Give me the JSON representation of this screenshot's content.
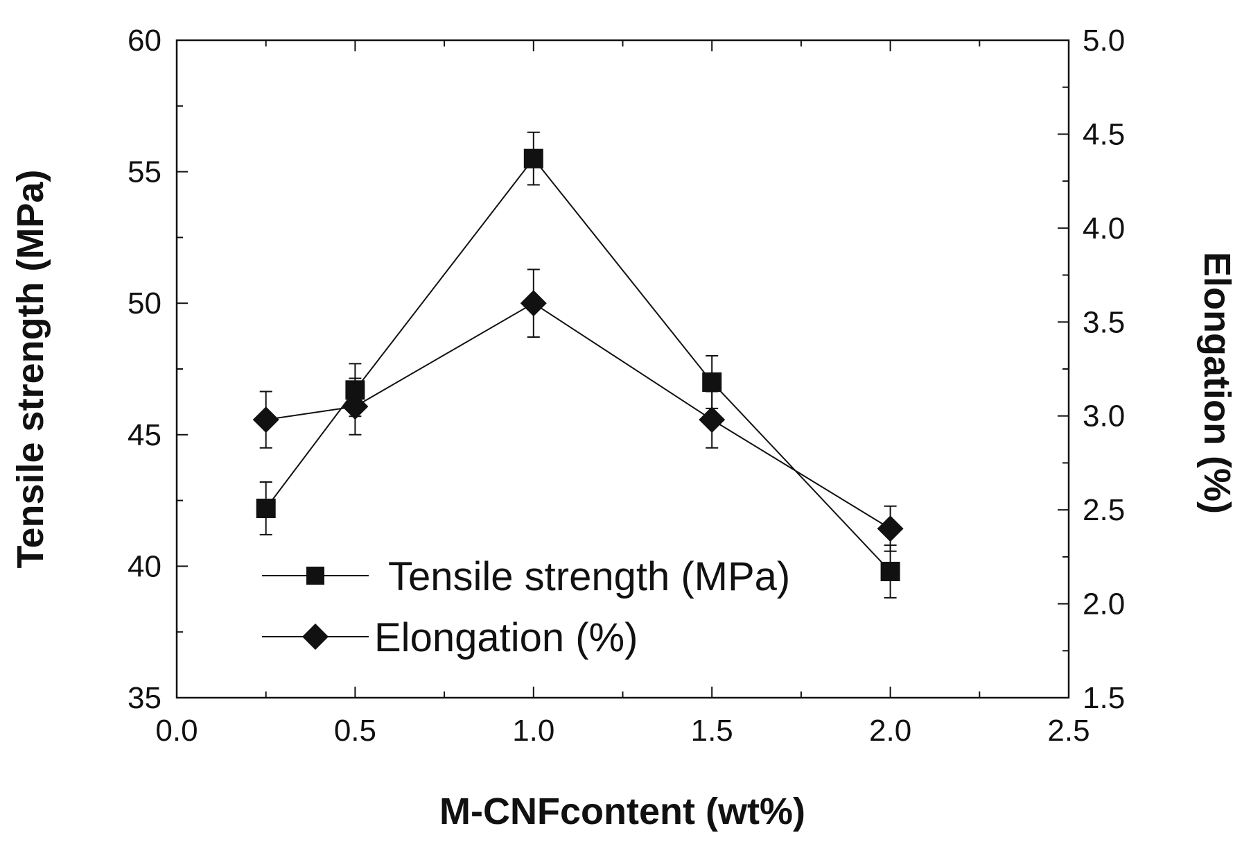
{
  "chart_data": {
    "type": "line",
    "xlabel": "M-CNFcontent (wt%)",
    "ylabel": "Tensile strength (MPa)",
    "y2label": "Elongation (%)",
    "xlim": [
      0.0,
      2.5
    ],
    "ylim": [
      35,
      60
    ],
    "y2lim": [
      1.5,
      5.0
    ],
    "x_ticks": [
      "0.0",
      "0.5",
      "1.0",
      "1.5",
      "2.0",
      "2.5"
    ],
    "y_ticks": [
      "35",
      "40",
      "45",
      "50",
      "55",
      "60"
    ],
    "y2_ticks": [
      "1.5",
      "2.0",
      "2.5",
      "3.0",
      "3.5",
      "4.0",
      "4.5",
      "5.0"
    ],
    "grid": false,
    "legend_position": "bottom-center",
    "series": [
      {
        "name": "Tensile strength (MPa)",
        "axis": "left",
        "marker": "square",
        "x": [
          0.25,
          0.5,
          1.0,
          1.5,
          2.0
        ],
        "y": [
          42.2,
          46.7,
          55.5,
          47.0,
          39.8
        ],
        "err": [
          1.0,
          1.0,
          1.0,
          1.0,
          1.0
        ]
      },
      {
        "name": "Elongation (%)",
        "axis": "right",
        "marker": "diamond",
        "x": [
          0.25,
          0.5,
          1.0,
          1.5,
          2.0
        ],
        "y": [
          2.98,
          3.05,
          3.6,
          2.98,
          2.4
        ],
        "err": [
          0.15,
          0.15,
          0.18,
          0.15,
          0.12
        ]
      }
    ]
  }
}
